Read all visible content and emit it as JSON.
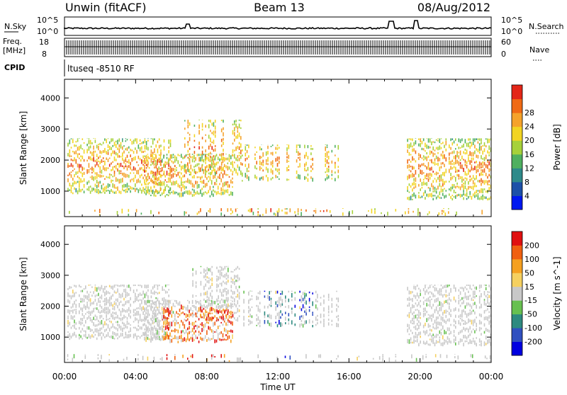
{
  "header": {
    "station": "Unwin (fitACF)",
    "beam": "Beam 13",
    "date": "08/Aug/2012"
  },
  "noise_panel": {
    "left_label": "N.Sky",
    "left_ticks": [
      "10^5",
      "10^0"
    ],
    "right_label": "N.Search",
    "right_ticks": [
      "10^5",
      "10^0"
    ]
  },
  "freq_panel": {
    "left_label_line1": "Freq.",
    "left_label_line2": "[MHz]",
    "left_ticks": [
      "18",
      "8"
    ],
    "right_label": "Nave",
    "right_ticks": [
      "60",
      "0"
    ]
  },
  "cpid": {
    "label": "CPID",
    "value": "ltuseq -8510 RF"
  },
  "chart_data": [
    {
      "type": "heatmap",
      "name": "power",
      "ylabel": "Slant Range [km]",
      "ylim": [
        180,
        4600
      ],
      "yticks": [
        1000,
        2000,
        3000,
        4000
      ],
      "xlim_hours": [
        0,
        24
      ],
      "colorbar": {
        "label": "Power [dB]",
        "ticks": [
          "4",
          "8",
          "12",
          "16",
          "20",
          "24",
          "28"
        ],
        "colors": [
          "#0018f0",
          "#1c50a8",
          "#2e8a8a",
          "#4fb060",
          "#a6d13a",
          "#f2d422",
          "#f5a22a",
          "#f06a14",
          "#e32618"
        ]
      }
    },
    {
      "type": "heatmap",
      "name": "velocity",
      "ylabel": "Slant Range [km]",
      "ylim": [
        180,
        4600
      ],
      "yticks": [
        1000,
        2000,
        3000,
        4000
      ],
      "xlim_hours": [
        0,
        24
      ],
      "xlabel": "Time UT",
      "xticks": [
        "00:00",
        "04:00",
        "08:00",
        "12:00",
        "16:00",
        "20:00",
        "00:00"
      ],
      "colorbar": {
        "label": "Velocity [m s^-1]",
        "ticks": [
          "200",
          "100",
          "50",
          "15",
          "-15",
          "-50",
          "-100",
          "-200"
        ],
        "colors": [
          "#0000e0",
          "#3050c0",
          "#2e8a80",
          "#67c050",
          "#c8c8c8",
          "#f5d060",
          "#f5a020",
          "#f06010",
          "#e01010"
        ]
      }
    }
  ]
}
